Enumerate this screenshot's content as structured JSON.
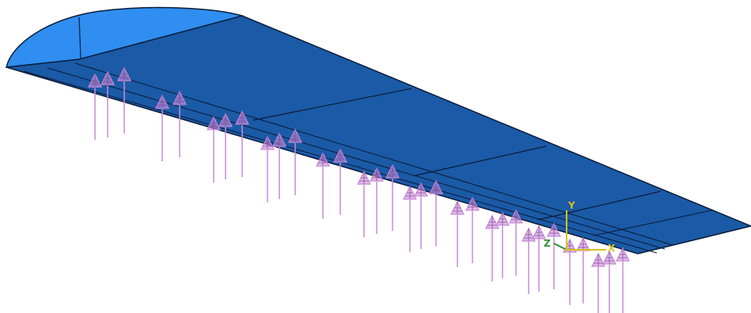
{
  "colors": {
    "background": "#ffffff",
    "wing_surface": "#1b5aa6",
    "wing_tip_face": "#2f8ef0",
    "wing_edge": "#0a1c3a",
    "load_arrow": "#c78ad8",
    "axis_x": "#d6c21c",
    "axis_y": "#d6c21c",
    "axis_z": "#2e8b3a"
  },
  "triad": {
    "x_label": "X",
    "y_label": "Y",
    "z_label": "Z"
  },
  "load_arrow_icon": "upward-force-arrow-icon"
}
